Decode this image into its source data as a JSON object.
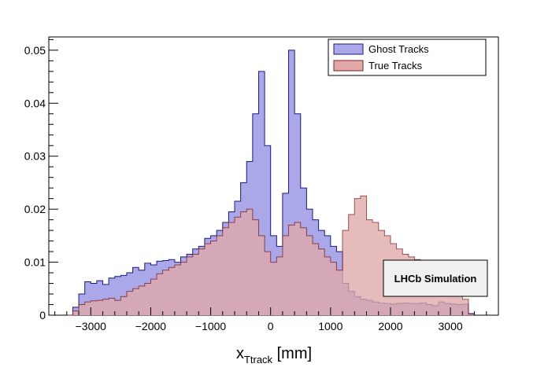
{
  "chart_data": {
    "type": "histogram",
    "xlabel_main": "x",
    "xlabel_sub": "Ttrack",
    "xlabel_unit": " [mm]",
    "ylabel": "",
    "xlim": [
      -3700,
      3800
    ],
    "ylim": [
      0,
      0.0525
    ],
    "x_ticks": [
      -3000,
      -2000,
      -1000,
      0,
      1000,
      2000,
      3000
    ],
    "x_tick_labels": [
      "−3000",
      "−2000",
      "−1000",
      "0",
      "1000",
      "2000",
      "3000"
    ],
    "y_ticks": [
      0,
      0.01,
      0.02,
      0.03,
      0.04,
      0.05
    ],
    "y_tick_labels": [
      "0",
      "0.01",
      "0.02",
      "0.03",
      "0.04",
      "0.05"
    ],
    "bin_start": -3400,
    "bin_width": 100,
    "legend_position": "top-right",
    "annotation": "LHCb Simulation",
    "series": [
      {
        "name": "Ghost Tracks",
        "color": "#aaa8e8",
        "edge": "#1a1a80",
        "values": [
          0.0,
          0.0015,
          0.004,
          0.0063,
          0.006,
          0.0065,
          0.0058,
          0.007,
          0.0073,
          0.0075,
          0.008,
          0.009,
          0.0085,
          0.0098,
          0.0095,
          0.0102,
          0.0103,
          0.0105,
          0.01,
          0.011,
          0.0115,
          0.0125,
          0.013,
          0.0145,
          0.015,
          0.016,
          0.0175,
          0.0195,
          0.0215,
          0.025,
          0.029,
          0.038,
          0.046,
          0.032,
          0.015,
          0.013,
          0.023,
          0.05,
          0.038,
          0.024,
          0.02,
          0.018,
          0.016,
          0.015,
          0.013,
          0.012,
          0.006,
          0.0045,
          0.0035,
          0.003,
          0.0028,
          0.0025,
          0.0023,
          0.0022,
          0.0021,
          0.0022,
          0.0023,
          0.0022,
          0.0022,
          0.0023,
          0.002,
          0.0018,
          0.0025,
          0.0022,
          0.0021,
          0.002,
          0.0021,
          0.0003
        ]
      },
      {
        "name": "True Tracks",
        "color": "#e0a8a8",
        "edge": "#802020",
        "values": [
          0.0,
          0.0008,
          0.002,
          0.0025,
          0.0027,
          0.0028,
          0.003,
          0.0032,
          0.0028,
          0.0035,
          0.0045,
          0.005,
          0.0055,
          0.006,
          0.0068,
          0.0078,
          0.0085,
          0.009,
          0.0095,
          0.01,
          0.011,
          0.0115,
          0.0125,
          0.0135,
          0.014,
          0.015,
          0.0165,
          0.0175,
          0.0185,
          0.0195,
          0.02,
          0.018,
          0.015,
          0.012,
          0.01,
          0.011,
          0.015,
          0.017,
          0.0175,
          0.0165,
          0.015,
          0.0135,
          0.0125,
          0.011,
          0.01,
          0.0085,
          0.016,
          0.019,
          0.022,
          0.0225,
          0.018,
          0.0175,
          0.016,
          0.015,
          0.0135,
          0.0125,
          0.0115,
          0.011,
          0.0105,
          0.0098,
          0.009,
          0.0085,
          0.008,
          0.007,
          0.006,
          0.005,
          0.003,
          0.0002
        ]
      }
    ]
  }
}
